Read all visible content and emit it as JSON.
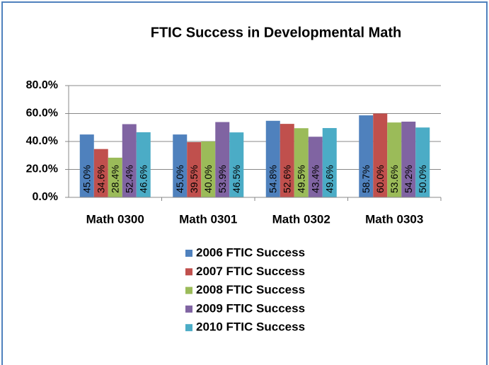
{
  "chart_data": {
    "type": "bar",
    "title": "FTIC Success in Developmental Math",
    "categories": [
      "Math 0300",
      "Math 0301",
      "Math 0302",
      "Math 0303"
    ],
    "series": [
      {
        "name": "2006 FTIC Success",
        "color": "#4f81bd",
        "values": [
          45.0,
          45.0,
          54.8,
          58.7
        ],
        "value_labels": [
          "45.0%",
          "45.0%",
          "54.8%",
          "58.7%"
        ]
      },
      {
        "name": "2007 FTIC Success",
        "color": "#c0504d",
        "values": [
          34.6,
          39.5,
          52.6,
          60.0
        ],
        "value_labels": [
          "34.6%",
          "39.5%",
          "52.6%",
          "60.0%"
        ]
      },
      {
        "name": "2008 FTIC Success",
        "color": "#9bbb59",
        "values": [
          28.4,
          40.0,
          49.5,
          53.6
        ],
        "value_labels": [
          "28.4%",
          "40.0%",
          "49.5%",
          "53.6%"
        ]
      },
      {
        "name": "2009 FTIC Success",
        "color": "#8064a2",
        "values": [
          52.4,
          53.9,
          43.4,
          54.2
        ],
        "value_labels": [
          "52.4%",
          "53.9%",
          "43.4%",
          "54.2%"
        ]
      },
      {
        "name": "2010 FTIC Success",
        "color": "#4bacc6",
        "values": [
          46.6,
          46.5,
          49.6,
          50.0
        ],
        "value_labels": [
          "46.6%",
          "46.5%",
          "49.6%",
          "50.0%"
        ]
      }
    ],
    "ylim": [
      0,
      80
    ],
    "yticks": [
      {
        "value": 0,
        "label": "0.0%"
      },
      {
        "value": 20,
        "label": "20.0%"
      },
      {
        "value": 40,
        "label": "40.0%"
      },
      {
        "value": 60,
        "label": "60.0%"
      },
      {
        "value": 80,
        "label": "80.0%"
      }
    ],
    "grid": true
  }
}
